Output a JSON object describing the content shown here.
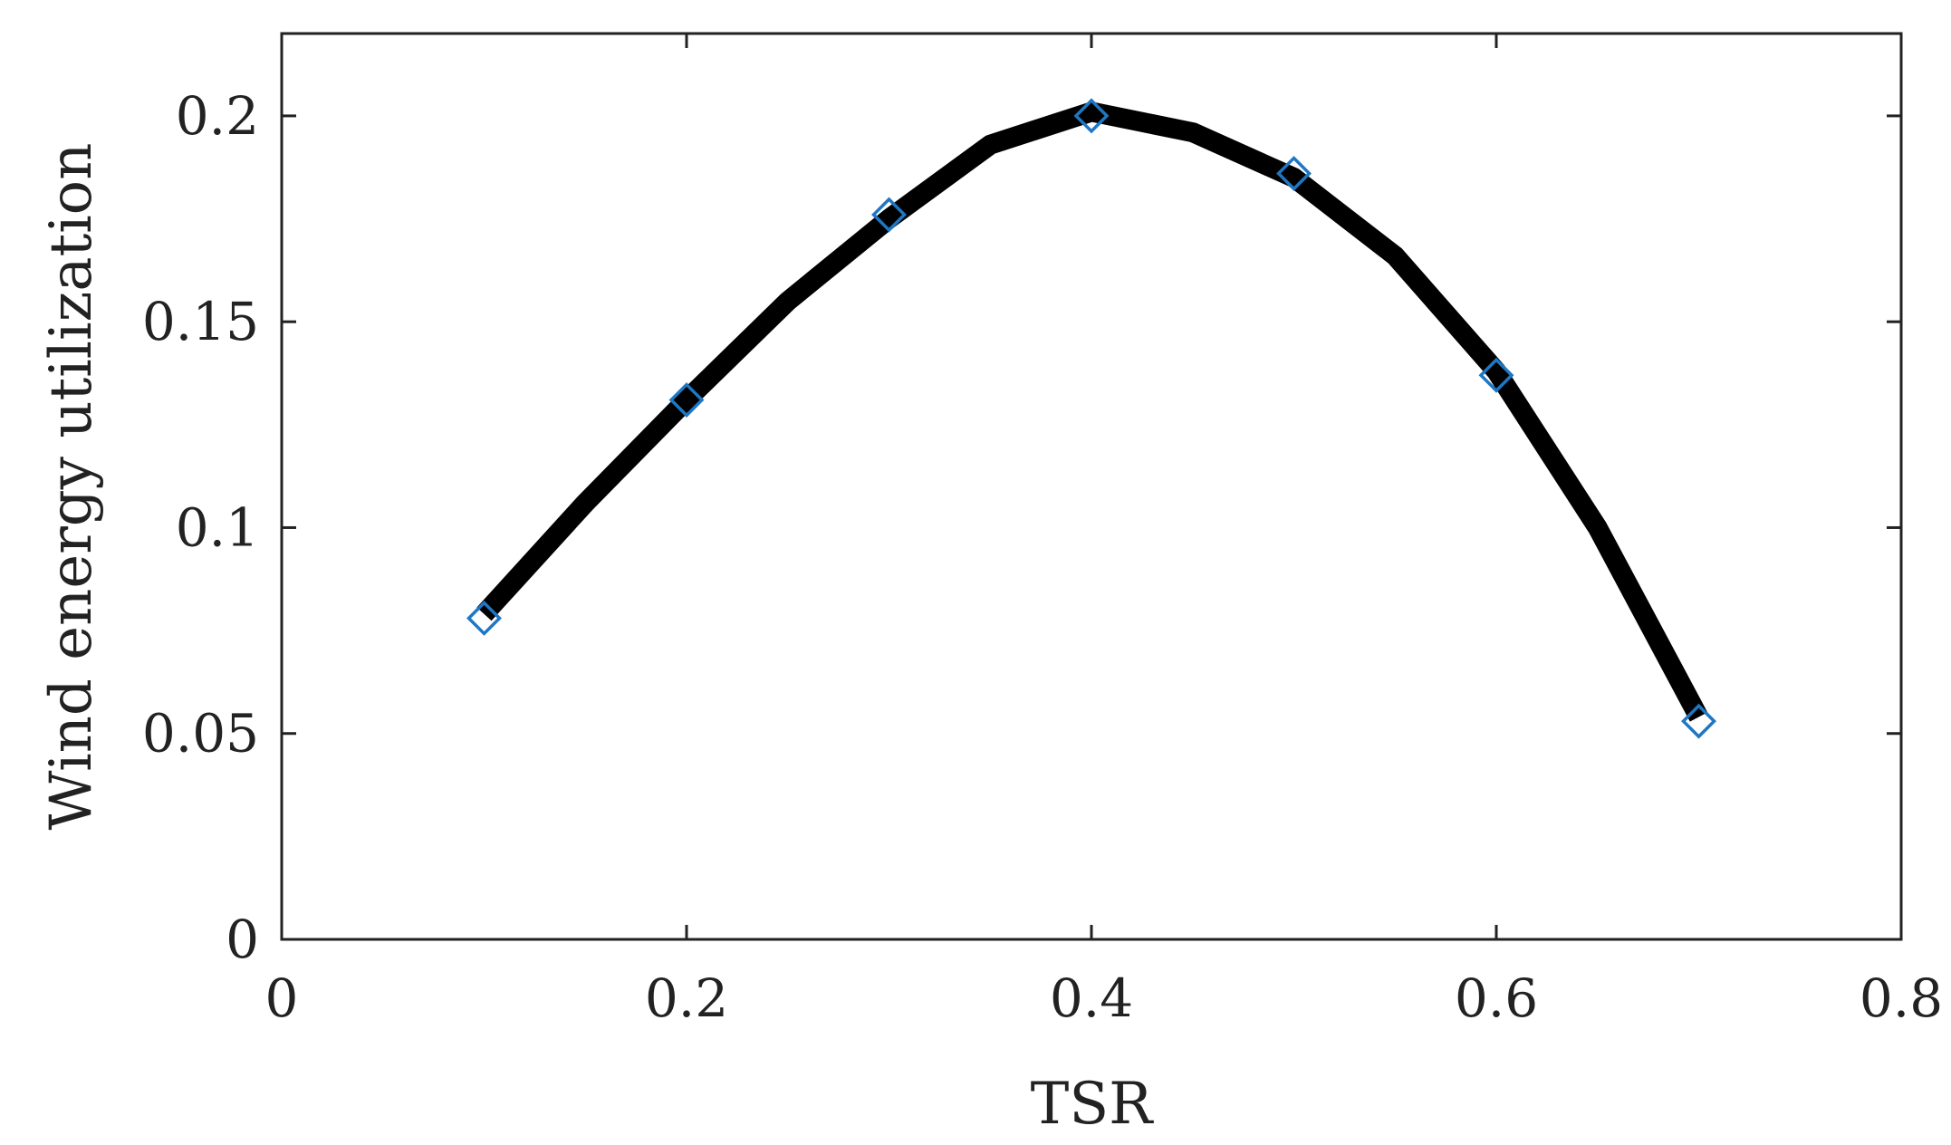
{
  "chart_data": {
    "type": "line",
    "title": "",
    "xlabel": "TSR",
    "ylabel": "Wind energy utilization",
    "xlim": [
      0,
      0.8
    ],
    "ylim": [
      0,
      0.22
    ],
    "xticks": [
      0,
      0.2,
      0.4,
      0.6,
      0.8
    ],
    "xtick_labels": [
      "0",
      "0.2",
      "0.4",
      "0.6",
      "0.8"
    ],
    "yticks": [
      0,
      0.05,
      0.1,
      0.15,
      0.2
    ],
    "ytick_labels": [
      "0",
      "0.05",
      "0.1",
      "0.15",
      "0.2"
    ],
    "grid": false,
    "legend": "none",
    "series": [
      {
        "style": "line",
        "color": "#000000",
        "x": [
          0.1,
          0.15,
          0.2,
          0.25,
          0.3,
          0.35,
          0.4,
          0.45,
          0.5,
          0.55,
          0.6,
          0.65,
          0.7
        ],
        "y": [
          0.079,
          0.106,
          0.131,
          0.155,
          0.175,
          0.193,
          0.201,
          0.196,
          0.185,
          0.166,
          0.138,
          0.1,
          0.054
        ]
      },
      {
        "style": "diamond-markers",
        "color": "#1f77c4",
        "x": [
          0.1,
          0.2,
          0.3,
          0.4,
          0.5,
          0.6,
          0.7
        ],
        "y": [
          0.078,
          0.131,
          0.176,
          0.2,
          0.186,
          0.137,
          0.053
        ]
      }
    ]
  }
}
